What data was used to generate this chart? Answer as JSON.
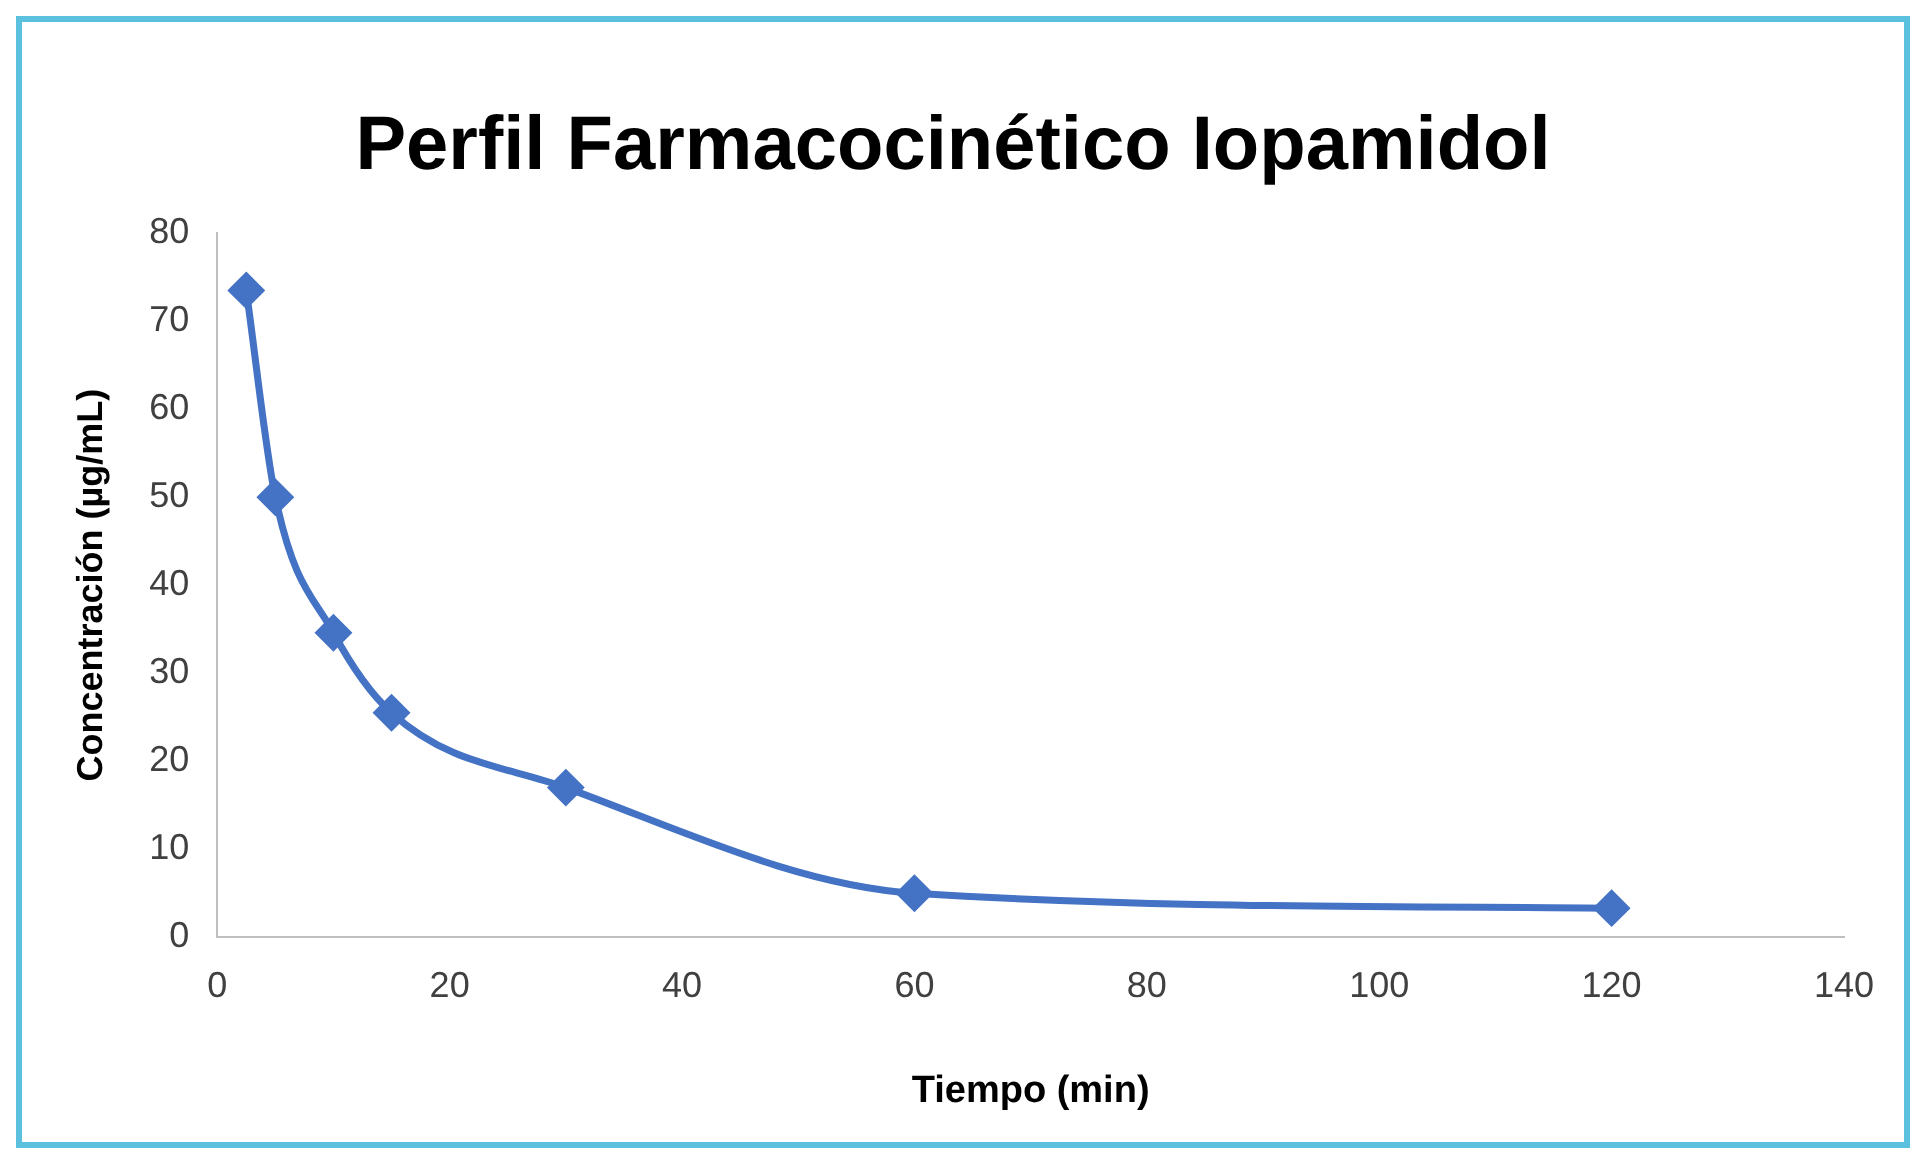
{
  "chart_data": {
    "type": "line",
    "title": "Perfil Farmacocinético Iopamidol",
    "xlabel": "Tiempo (min)",
    "ylabel": "Concentración (µg/mL)",
    "x": [
      2.5,
      5,
      10,
      15,
      30,
      60,
      120
    ],
    "series": [
      {
        "color": "#4472c4",
        "values": [
          73.5,
          50,
          34.6,
          25.5,
          17,
          5,
          3.3
        ]
      }
    ],
    "xlim": [
      0,
      140
    ],
    "xticks": [
      0,
      20,
      40,
      60,
      80,
      100,
      120,
      140
    ],
    "ylim": [
      0,
      80
    ],
    "yticks": [
      0,
      10,
      20,
      30,
      40,
      50,
      60,
      70,
      80
    ],
    "grid": false,
    "legend": false,
    "marker": "diamond",
    "line_style": "solid"
  }
}
